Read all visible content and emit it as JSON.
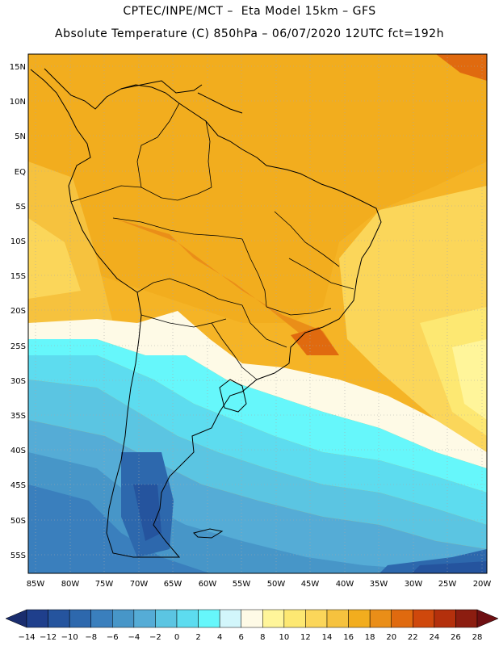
{
  "header": {
    "title_line1": "CPTEC/INPE/MCT –  Eta Model 15km – GFS",
    "title_line2": "Absolute Temperature (C) 850hPa – 06/07/2020 12UTC fct=192h"
  },
  "map": {
    "lat_labels": [
      "15N",
      "10N",
      "5N",
      "EQ",
      "5S",
      "10S",
      "15S",
      "20S",
      "25S",
      "30S",
      "35S",
      "40S",
      "45S",
      "50S",
      "55S"
    ],
    "lon_labels": [
      "85W",
      "80W",
      "75W",
      "70W",
      "65W",
      "60W",
      "55W",
      "50W",
      "45W",
      "40W",
      "35W",
      "30W",
      "25W",
      "20W"
    ]
  },
  "colorbar": {
    "labels": [
      "-14",
      "-12",
      "-10",
      "-8",
      "-6",
      "-4",
      "-2",
      "0",
      "2",
      "4",
      "6",
      "8",
      "10",
      "12",
      "14",
      "16",
      "18",
      "20",
      "22",
      "24",
      "26",
      "28"
    ],
    "colors": [
      "#1f3f8c",
      "#25549e",
      "#2d68ad",
      "#3a7fbd",
      "#4796c8",
      "#55acd6",
      "#5bc5e2",
      "#5ddcef",
      "#66f7fb",
      "#d2f6fb",
      "#fefae6",
      "#fff59a",
      "#fde872",
      "#fbd65a",
      "#f6c23e",
      "#f2ad1e",
      "#ea8e18",
      "#e06a0f",
      "#cf480c",
      "#b4300c",
      "#8c1d10"
    ],
    "low_color": "#1a2d6e",
    "high_color": "#6e0f12"
  }
}
